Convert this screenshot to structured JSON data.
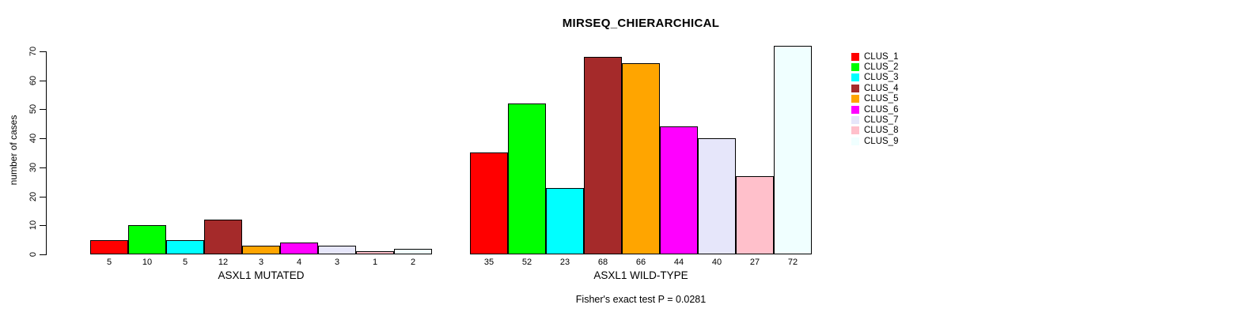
{
  "chart_data": {
    "type": "bar",
    "title": "MIRSEQ_CHIERARCHICAL",
    "ylabel": "number of cases",
    "xlabel": "",
    "ylim": [
      0,
      70
    ],
    "y_ticks": [
      0,
      10,
      20,
      30,
      40,
      50,
      60,
      70
    ],
    "grid": false,
    "legend_position": "right",
    "groups": [
      "ASXL1 MUTATED",
      "ASXL1 WILD-TYPE"
    ],
    "series": [
      {
        "name": "CLUS_1",
        "color": "#FF0000",
        "values": [
          5,
          35
        ]
      },
      {
        "name": "CLUS_2",
        "color": "#00FF00",
        "values": [
          10,
          52
        ]
      },
      {
        "name": "CLUS_3",
        "color": "#00FFFF",
        "values": [
          5,
          23
        ]
      },
      {
        "name": "CLUS_4",
        "color": "#A52A2A",
        "values": [
          12,
          68
        ]
      },
      {
        "name": "CLUS_5",
        "color": "#FFA500",
        "values": [
          3,
          66
        ]
      },
      {
        "name": "CLUS_6",
        "color": "#FF00FF",
        "values": [
          4,
          44
        ]
      },
      {
        "name": "CLUS_7",
        "color": "#E6E6FA",
        "values": [
          3,
          40
        ]
      },
      {
        "name": "CLUS_8",
        "color": "#FFC0CB",
        "values": [
          1,
          27
        ]
      },
      {
        "name": "CLUS_9",
        "color": "#F0FFFF",
        "values": [
          2,
          72
        ]
      }
    ],
    "bar_value_labels_shown": true,
    "footnote": "Fisher's exact test P = 0.0281"
  }
}
